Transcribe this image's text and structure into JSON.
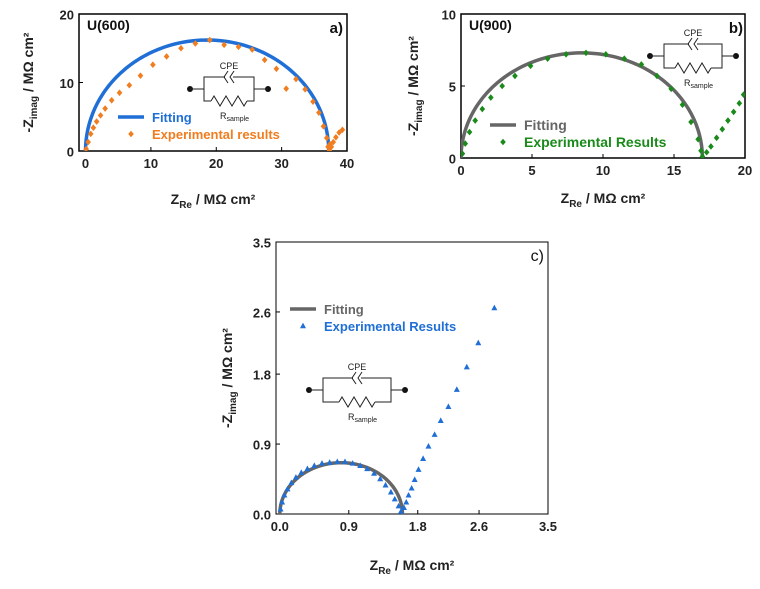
{
  "chart_data": [
    {
      "type": "scatter",
      "panel_label": "a)",
      "sample_label": "U(600)",
      "xlabel": "Z_Re / MΩ cm²",
      "ylabel": "-Z_imag / MΩ cm²",
      "xlim": [
        -1,
        40
      ],
      "ylim": [
        0,
        20
      ],
      "xticks": [
        0,
        10,
        20,
        30,
        40
      ],
      "yticks": [
        0,
        10,
        20
      ],
      "legend_position": "center-left",
      "circuit": {
        "cpe_label": "CPE",
        "r_label": "R",
        "r_sub": "sample"
      },
      "series": [
        {
          "name": "Fitting",
          "kind": "line",
          "color": "#1f6fd6",
          "model": "semicircle",
          "r_solution": 0.0,
          "r_sample": 37.2,
          "peak": 16.2
        },
        {
          "name": "Experimental results",
          "kind": "points",
          "marker": "diamond",
          "color": "#f07d1f",
          "points": [
            [
              0.1,
              0.3
            ],
            [
              0.4,
              1.3
            ],
            [
              0.8,
              2.5
            ],
            [
              1.2,
              3.4
            ],
            [
              1.7,
              4.3
            ],
            [
              2.3,
              5.2
            ],
            [
              3.0,
              6.2
            ],
            [
              4.0,
              7.4
            ],
            [
              5.2,
              8.5
            ],
            [
              6.7,
              9.6
            ],
            [
              8.4,
              11.0
            ],
            [
              10.3,
              12.6
            ],
            [
              12.4,
              13.8
            ],
            [
              14.6,
              15.0
            ],
            [
              16.8,
              15.7
            ],
            [
              19.0,
              16.2
            ],
            [
              21.2,
              15.5
            ],
            [
              23.4,
              15.2
            ],
            [
              25.5,
              14.8
            ],
            [
              27.4,
              13.3
            ],
            [
              29.2,
              12.0
            ],
            [
              30.7,
              9.1
            ],
            [
              32.2,
              10.5
            ],
            [
              33.6,
              9.0
            ],
            [
              34.8,
              7.2
            ],
            [
              35.7,
              5.6
            ],
            [
              36.4,
              3.6
            ],
            [
              36.9,
              1.9
            ],
            [
              37.1,
              0.6
            ],
            [
              37.3,
              0.1
            ],
            [
              37.6,
              0.6
            ],
            [
              37.9,
              1.3
            ],
            [
              38.3,
              2.0
            ],
            [
              38.8,
              2.7
            ],
            [
              39.3,
              3.1
            ],
            [
              37.4,
              1.0
            ]
          ]
        }
      ]
    },
    {
      "type": "scatter",
      "panel_label": "b)",
      "sample_label": "U(900)",
      "xlabel": "Z_Re / MΩ cm²",
      "ylabel": "-Z_imag / MΩ cm²",
      "xlim": [
        0,
        20
      ],
      "ylim": [
        0,
        10
      ],
      "xticks": [
        0,
        5,
        10,
        15,
        20
      ],
      "yticks": [
        0,
        5,
        10
      ],
      "legend_position": "bottom-left",
      "circuit": {
        "cpe_label": "CPE",
        "r_label": "R",
        "r_sub": "sample"
      },
      "series": [
        {
          "name": "Fitting",
          "kind": "line",
          "color": "#666666",
          "model": "semicircle",
          "r_solution": 0.0,
          "r_sample": 17.0,
          "peak": 7.3
        },
        {
          "name": "Experimental Results",
          "kind": "points",
          "marker": "diamond",
          "color": "#1a8a1a",
          "points": [
            [
              0.1,
              0.3
            ],
            [
              0.3,
              1.0
            ],
            [
              0.6,
              1.8
            ],
            [
              1.0,
              2.6
            ],
            [
              1.5,
              3.4
            ],
            [
              2.1,
              4.2
            ],
            [
              2.9,
              5.0
            ],
            [
              3.8,
              5.7
            ],
            [
              4.9,
              6.4
            ],
            [
              6.1,
              6.9
            ],
            [
              7.4,
              7.2
            ],
            [
              8.8,
              7.3
            ],
            [
              10.2,
              7.2
            ],
            [
              11.5,
              6.9
            ],
            [
              12.7,
              6.5
            ],
            [
              13.8,
              5.7
            ],
            [
              14.8,
              4.8
            ],
            [
              15.6,
              3.7
            ],
            [
              16.2,
              2.5
            ],
            [
              16.7,
              1.3
            ],
            [
              16.9,
              0.5
            ],
            [
              17.0,
              0.1
            ],
            [
              17.3,
              0.4
            ],
            [
              17.6,
              0.8
            ],
            [
              18.0,
              1.4
            ],
            [
              18.4,
              2.0
            ],
            [
              18.8,
              2.6
            ],
            [
              19.2,
              3.2
            ],
            [
              19.6,
              3.8
            ],
            [
              19.9,
              4.4
            ]
          ]
        }
      ]
    },
    {
      "type": "scatter",
      "panel_label": "c)",
      "xlabel": "Z_Re / MΩ cm²",
      "ylabel": "-Z_imag / MΩ cm²",
      "xlim": [
        -0.05,
        3.5
      ],
      "ylim": [
        0,
        3.5
      ],
      "xticks": [
        0.0,
        0.9,
        1.8,
        2.6,
        3.5
      ],
      "yticks": [
        0.0,
        0.9,
        1.8,
        2.6,
        3.5
      ],
      "tick_format": "0.0",
      "legend_position": "top-left",
      "circuit": {
        "cpe_label": "CPE",
        "r_label": "R",
        "r_sub": "sample"
      },
      "series": [
        {
          "name": "Fitting",
          "kind": "line",
          "color": "#666666",
          "model": "semicircle",
          "r_solution": 0.0,
          "r_sample": 1.6,
          "peak": 0.66
        },
        {
          "name": "Experimental Results",
          "kind": "points",
          "marker": "triangle",
          "color": "#1f6fd6",
          "points": [
            [
              0.01,
              0.06
            ],
            [
              0.03,
              0.15
            ],
            [
              0.06,
              0.24
            ],
            [
              0.1,
              0.32
            ],
            [
              0.15,
              0.4
            ],
            [
              0.21,
              0.47
            ],
            [
              0.28,
              0.53
            ],
            [
              0.36,
              0.58
            ],
            [
              0.45,
              0.62
            ],
            [
              0.55,
              0.65
            ],
            [
              0.65,
              0.66
            ],
            [
              0.75,
              0.67
            ],
            [
              0.85,
              0.67
            ],
            [
              0.95,
              0.65
            ],
            [
              1.05,
              0.62
            ],
            [
              1.14,
              0.58
            ],
            [
              1.23,
              0.52
            ],
            [
              1.31,
              0.45
            ],
            [
              1.38,
              0.37
            ],
            [
              1.45,
              0.28
            ],
            [
              1.5,
              0.19
            ],
            [
              1.55,
              0.1
            ],
            [
              1.58,
              0.03
            ],
            [
              1.62,
              0.08
            ],
            [
              1.65,
              0.15
            ],
            [
              1.68,
              0.24
            ],
            [
              1.72,
              0.33
            ],
            [
              1.76,
              0.44
            ],
            [
              1.81,
              0.57
            ],
            [
              1.87,
              0.71
            ],
            [
              1.94,
              0.87
            ],
            [
              2.02,
              1.02
            ],
            [
              2.1,
              1.2
            ],
            [
              2.2,
              1.38
            ],
            [
              2.31,
              1.6
            ],
            [
              2.44,
              1.89
            ],
            [
              2.59,
              2.2
            ],
            [
              2.8,
              2.65
            ]
          ]
        }
      ]
    }
  ]
}
